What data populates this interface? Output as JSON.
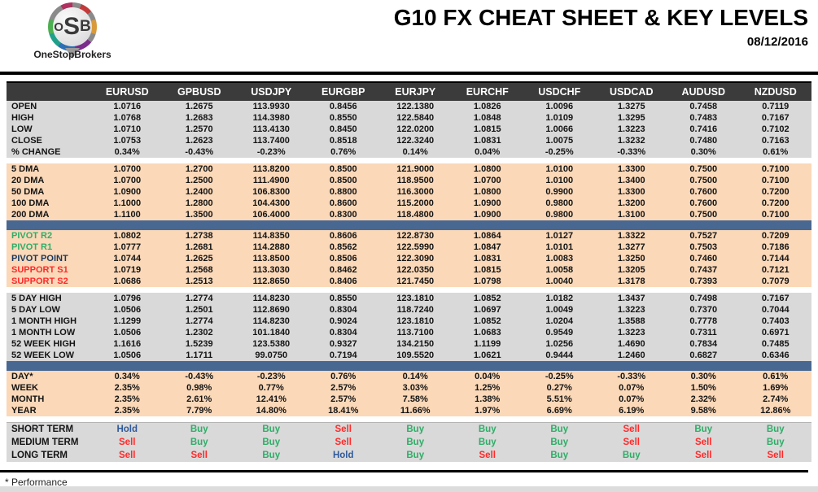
{
  "header": {
    "logo": {
      "text_o": "O",
      "text_s": "S",
      "text_b": "B",
      "brand": "OneStopBrokers"
    },
    "title": "G10 FX CHEAT SHEET & KEY LEVELS",
    "date": "08/12/2016"
  },
  "table": {
    "columns": [
      "EURUSD",
      "GPBUSD",
      "USDJPY",
      "EURGBP",
      "EURJPY",
      "EURCHF",
      "USDCHF",
      "USDCAD",
      "AUDUSD",
      "NZDUSD"
    ],
    "sections": [
      {
        "id": "ohlc",
        "theme": "gray",
        "divider_after": "gap",
        "rows": [
          {
            "label": "OPEN",
            "values": [
              "1.0716",
              "1.2675",
              "113.9930",
              "0.8456",
              "122.1380",
              "1.0826",
              "1.0096",
              "1.3275",
              "0.7458",
              "0.7119"
            ]
          },
          {
            "label": "HIGH",
            "values": [
              "1.0768",
              "1.2683",
              "114.3980",
              "0.8550",
              "122.5840",
              "1.0848",
              "1.0109",
              "1.3295",
              "0.7483",
              "0.7167"
            ]
          },
          {
            "label": "LOW",
            "values": [
              "1.0710",
              "1.2570",
              "113.4130",
              "0.8450",
              "122.0200",
              "1.0815",
              "1.0066",
              "1.3223",
              "0.7416",
              "0.7102"
            ]
          },
          {
            "label": "CLOSE",
            "values": [
              "1.0753",
              "1.2623",
              "113.7400",
              "0.8518",
              "122.3240",
              "1.0831",
              "1.0075",
              "1.3232",
              "0.7480",
              "0.7163"
            ]
          },
          {
            "label": "% CHANGE",
            "values": [
              "0.34%",
              "-0.43%",
              "-0.23%",
              "0.76%",
              "0.14%",
              "0.04%",
              "-0.25%",
              "-0.33%",
              "0.30%",
              "0.61%"
            ]
          }
        ]
      },
      {
        "id": "dma",
        "theme": "peach",
        "divider_after": "blue",
        "rows": [
          {
            "label": "5 DMA",
            "values": [
              "1.0700",
              "1.2700",
              "113.8200",
              "0.8500",
              "121.9000",
              "1.0800",
              "1.0100",
              "1.3300",
              "0.7500",
              "0.7100"
            ]
          },
          {
            "label": "20 DMA",
            "values": [
              "1.0700",
              "1.2500",
              "111.4900",
              "0.8500",
              "118.9500",
              "1.0700",
              "1.0100",
              "1.3400",
              "0.7500",
              "0.7100"
            ]
          },
          {
            "label": "50 DMA",
            "values": [
              "1.0900",
              "1.2400",
              "106.8300",
              "0.8800",
              "116.3000",
              "1.0800",
              "0.9900",
              "1.3300",
              "0.7600",
              "0.7200"
            ]
          },
          {
            "label": "100 DMA",
            "values": [
              "1.1000",
              "1.2800",
              "104.4300",
              "0.8600",
              "115.2000",
              "1.0900",
              "0.9800",
              "1.3200",
              "0.7600",
              "0.7200"
            ]
          },
          {
            "label": "200 DMA",
            "values": [
              "1.1100",
              "1.3500",
              "106.4000",
              "0.8300",
              "118.4800",
              "1.0900",
              "0.9800",
              "1.3100",
              "0.7500",
              "0.7100"
            ]
          }
        ]
      },
      {
        "id": "pivots",
        "theme": "peach",
        "divider_after": "gap",
        "rows": [
          {
            "label": "PIVOT R2",
            "label_color": "green",
            "values": [
              "1.0802",
              "1.2738",
              "114.8350",
              "0.8606",
              "122.8730",
              "1.0864",
              "1.0127",
              "1.3322",
              "0.7527",
              "0.7209"
            ]
          },
          {
            "label": "PIVOT R1",
            "label_color": "green",
            "values": [
              "1.0777",
              "1.2681",
              "114.2880",
              "0.8562",
              "122.5990",
              "1.0847",
              "1.0101",
              "1.3277",
              "0.7503",
              "0.7186"
            ]
          },
          {
            "label": "PIVOT POINT",
            "label_color": "navy",
            "values": [
              "1.0744",
              "1.2625",
              "113.8500",
              "0.8506",
              "122.3090",
              "1.0831",
              "1.0083",
              "1.3250",
              "0.7460",
              "0.7144"
            ]
          },
          {
            "label": "SUPPORT S1",
            "label_color": "red",
            "values": [
              "1.0719",
              "1.2568",
              "113.3030",
              "0.8462",
              "122.0350",
              "1.0815",
              "1.0058",
              "1.3205",
              "0.7437",
              "0.7121"
            ]
          },
          {
            "label": "SUPPORT S2",
            "label_color": "red",
            "values": [
              "1.0686",
              "1.2513",
              "112.8650",
              "0.8406",
              "121.7450",
              "1.0798",
              "1.0040",
              "1.3178",
              "0.7393",
              "0.7079"
            ]
          }
        ]
      },
      {
        "id": "ranges",
        "theme": "gray",
        "divider_after": "blue",
        "rows": [
          {
            "label": "5 DAY HIGH",
            "values": [
              "1.0796",
              "1.2774",
              "114.8230",
              "0.8550",
              "123.1810",
              "1.0852",
              "1.0182",
              "1.3437",
              "0.7498",
              "0.7167"
            ]
          },
          {
            "label": "5 DAY LOW",
            "values": [
              "1.0506",
              "1.2501",
              "112.8690",
              "0.8304",
              "118.7240",
              "1.0697",
              "1.0049",
              "1.3223",
              "0.7370",
              "0.7044"
            ]
          },
          {
            "label": "1 MONTH HIGH",
            "values": [
              "1.1299",
              "1.2774",
              "114.8230",
              "0.9024",
              "123.1810",
              "1.0852",
              "1.0204",
              "1.3588",
              "0.7778",
              "0.7403"
            ]
          },
          {
            "label": "1 MONTH LOW",
            "values": [
              "1.0506",
              "1.2302",
              "101.1840",
              "0.8304",
              "113.7100",
              "1.0683",
              "0.9549",
              "1.3223",
              "0.7311",
              "0.6971"
            ]
          },
          {
            "label": "52 WEEK HIGH",
            "values": [
              "1.1616",
              "1.5239",
              "123.5380",
              "0.9327",
              "134.2150",
              "1.1199",
              "1.0256",
              "1.4690",
              "0.7834",
              "0.7485"
            ]
          },
          {
            "label": "52 WEEK LOW",
            "values": [
              "1.0506",
              "1.1711",
              "99.0750",
              "0.7194",
              "109.5520",
              "1.0621",
              "0.9444",
              "1.2460",
              "0.6827",
              "0.6346"
            ]
          }
        ]
      },
      {
        "id": "performance",
        "theme": "peach",
        "divider_after": "gap2",
        "rows": [
          {
            "label": "DAY*",
            "values": [
              "0.34%",
              "-0.43%",
              "-0.23%",
              "0.76%",
              "0.14%",
              "0.04%",
              "-0.25%",
              "-0.33%",
              "0.30%",
              "0.61%"
            ]
          },
          {
            "label": "WEEK",
            "values": [
              "2.35%",
              "0.98%",
              "0.77%",
              "2.57%",
              "3.03%",
              "1.25%",
              "0.27%",
              "0.07%",
              "1.50%",
              "1.69%"
            ]
          },
          {
            "label": "MONTH",
            "values": [
              "2.35%",
              "2.61%",
              "12.41%",
              "2.57%",
              "7.58%",
              "1.38%",
              "5.51%",
              "0.07%",
              "2.32%",
              "2.74%"
            ]
          },
          {
            "label": "YEAR",
            "values": [
              "2.35%",
              "7.79%",
              "14.80%",
              "18.41%",
              "11.66%",
              "1.97%",
              "6.69%",
              "6.19%",
              "9.58%",
              "12.86%"
            ]
          }
        ]
      },
      {
        "id": "signals",
        "theme": "gray",
        "signal": true,
        "rows": [
          {
            "label": "SHORT TERM",
            "values": [
              "Hold",
              "Buy",
              "Buy",
              "Sell",
              "Buy",
              "Buy",
              "Buy",
              "Sell",
              "Buy",
              "Buy"
            ]
          },
          {
            "label": "MEDIUM TERM",
            "values": [
              "Sell",
              "Buy",
              "Buy",
              "Sell",
              "Buy",
              "Buy",
              "Buy",
              "Sell",
              "Sell",
              "Buy"
            ]
          },
          {
            "label": "LONG TERM",
            "values": [
              "Sell",
              "Sell",
              "Buy",
              "Hold",
              "Buy",
              "Sell",
              "Buy",
              "Buy",
              "Sell",
              "Sell"
            ]
          }
        ]
      }
    ]
  },
  "footer": {
    "note": "* Performance"
  },
  "colors": {
    "header_bg": "#3b3b3b",
    "section_gray": "#d9d9d9",
    "section_peach": "#fad8b8",
    "blue_bar": "#486891",
    "green": "#2fad68",
    "red": "#ff2a2a",
    "navy": "#17375e",
    "buy": "#2fad68",
    "sell": "#ff2a2a",
    "hold": "#30599a",
    "signal_map": {
      "Buy": "buy",
      "Sell": "sell",
      "Hold": "hold"
    }
  }
}
